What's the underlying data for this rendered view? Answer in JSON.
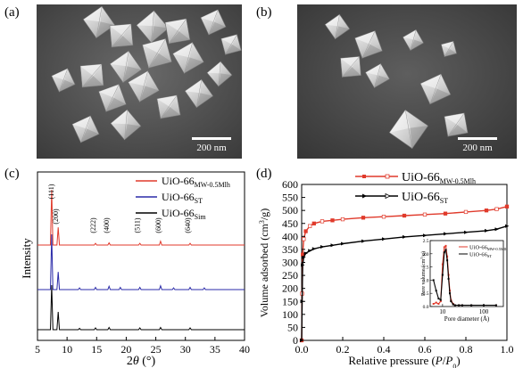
{
  "panels": {
    "a": {
      "label": "(a)",
      "scale_bar": "200 nm"
    },
    "b": {
      "label": "(b)",
      "scale_bar": "200 nm"
    },
    "c": {
      "label": "(c)"
    },
    "d": {
      "label": "(d)"
    }
  },
  "chart_data": [
    {
      "type": "line",
      "panel": "c",
      "xlabel": "2θ (°)",
      "xlabel_main": "2",
      "xlabel_theta": "θ",
      "xlabel_unit": " (°)",
      "ylabel": "Intensity (a.u.)",
      "xlim": [
        5,
        40
      ],
      "x_ticks": [
        "5",
        "10",
        "15",
        "20",
        "25",
        "30",
        "35",
        "40"
      ],
      "legend": [
        {
          "name": "UiO-66",
          "sub": "MW-0.5Mlh",
          "color": "#e03a2b"
        },
        {
          "name": "UiO-66",
          "sub": "ST",
          "color": "#2a2aa8"
        },
        {
          "name": "UiO-66",
          "sub": "Sim",
          "color": "#000000"
        }
      ],
      "peak_labels": [
        {
          "text": "(111)",
          "two_theta": 7.4
        },
        {
          "text": "(200)",
          "two_theta": 8.5
        },
        {
          "text": "(222)",
          "two_theta": 14.8
        },
        {
          "text": "(400)",
          "two_theta": 17.1
        },
        {
          "text": "(511)",
          "two_theta": 22.3
        },
        {
          "text": "(600)",
          "two_theta": 25.8
        },
        {
          "text": "(640)",
          "two_theta": 30.8
        }
      ],
      "series": [
        {
          "name": "UiO-66 MW-0.5Mlh",
          "color": "#e03a2b",
          "peaks": [
            [
              7.4,
              1.0
            ],
            [
              8.5,
              0.32
            ],
            [
              14.8,
              0.03
            ],
            [
              17.1,
              0.04
            ],
            [
              22.3,
              0.03
            ],
            [
              25.8,
              0.07
            ],
            [
              30.8,
              0.03
            ]
          ]
        },
        {
          "name": "UiO-66 ST",
          "color": "#2a2aa8",
          "peaks": [
            [
              7.4,
              1.0
            ],
            [
              8.5,
              0.32
            ],
            [
              12.1,
              0.03
            ],
            [
              14.8,
              0.04
            ],
            [
              17.1,
              0.06
            ],
            [
              19.0,
              0.04
            ],
            [
              22.3,
              0.04
            ],
            [
              25.8,
              0.07
            ],
            [
              28.0,
              0.03
            ],
            [
              30.8,
              0.04
            ],
            [
              33.2,
              0.03
            ]
          ]
        },
        {
          "name": "UiO-66 Sim",
          "color": "#000000",
          "peaks": [
            [
              7.4,
              1.0
            ],
            [
              8.5,
              0.4
            ],
            [
              12.1,
              0.03
            ],
            [
              14.8,
              0.04
            ],
            [
              17.1,
              0.05
            ],
            [
              22.3,
              0.04
            ],
            [
              25.8,
              0.05
            ],
            [
              30.8,
              0.04
            ]
          ]
        }
      ]
    },
    {
      "type": "line",
      "panel": "d",
      "xlabel": "Relative pressure (P/P0)",
      "xlabel_main": "Relative pressure (",
      "xlabel_p": "P",
      "xlabel_slash": "/",
      "xlabel_p0": "P",
      "xlabel_p0_sub": "0",
      "xlabel_close": ")",
      "ylabel": "Volume adsorbed (cm3/g)",
      "ylabel_main": "Volume adsorbed (cm",
      "ylabel_sup": "3",
      "ylabel_end": "/g)",
      "xlim": [
        0,
        1.0
      ],
      "ylim": [
        0,
        600
      ],
      "x_ticks": [
        "0.0",
        "0.2",
        "0.4",
        "0.6",
        "0.8",
        "1.0"
      ],
      "y_ticks": [
        "0",
        "50",
        "100",
        "150",
        "200",
        "250",
        "300",
        "350",
        "400",
        "450",
        "500",
        "550",
        "600"
      ],
      "legend": [
        {
          "name": "UiO-66",
          "sub": "MW-0.5Mlh",
          "color": "#e03a2b"
        },
        {
          "name": "UiO-66",
          "sub": "ST",
          "color": "#000000"
        }
      ],
      "series": [
        {
          "name": "UiO-66 MW-0.5Mlh",
          "color": "#e03a2b",
          "x": [
            0.0,
            0.002,
            0.005,
            0.01,
            0.02,
            0.04,
            0.06,
            0.1,
            0.15,
            0.2,
            0.3,
            0.4,
            0.5,
            0.6,
            0.7,
            0.8,
            0.9,
            0.95,
            1.0
          ],
          "y": [
            0,
            180,
            330,
            390,
            420,
            440,
            450,
            458,
            462,
            466,
            472,
            476,
            480,
            484,
            488,
            494,
            500,
            505,
            515
          ]
        },
        {
          "name": "UiO-66 ST",
          "color": "#000000",
          "x": [
            0.0,
            0.002,
            0.005,
            0.01,
            0.02,
            0.04,
            0.06,
            0.1,
            0.15,
            0.2,
            0.3,
            0.4,
            0.5,
            0.6,
            0.7,
            0.8,
            0.9,
            0.95,
            1.0
          ],
          "y": [
            0,
            150,
            290,
            320,
            335,
            345,
            352,
            360,
            366,
            372,
            382,
            390,
            398,
            404,
            410,
            416,
            422,
            428,
            440
          ]
        }
      ],
      "inset": {
        "xlabel": "Pore diameter (Å)",
        "ylabel": "Pore volume (cm3/g)",
        "ylabel_main": "Pore volume (cm",
        "ylabel_sup": "3",
        "ylabel_end": "/g)",
        "x_scale": "log",
        "xlim": [
          5,
          300
        ],
        "ylim": [
          0,
          2.5
        ],
        "x_ticks": [
          "10",
          "100"
        ],
        "y_ticks": [
          "0.0",
          "0.5",
          "1.0",
          "1.5",
          "2.0",
          "2.5"
        ],
        "legend": [
          {
            "name": "UiO-66",
            "sub": "MW-0.5Mlh",
            "color": "#e03a2b"
          },
          {
            "name": "UiO-66",
            "sub": "ST",
            "color": "#000000"
          }
        ],
        "series": [
          {
            "name": "UiO-66 MW-0.5Mlh",
            "color": "#e03a2b",
            "x": [
              6,
              7,
              8,
              9,
              10,
              11,
              12,
              13,
              14,
              15,
              16,
              18,
              20,
              25,
              30,
              50,
              100,
              200
            ],
            "y": [
              0.1,
              0.15,
              0.1,
              0.2,
              1.6,
              2.25,
              2.3,
              1.9,
              1.2,
              0.6,
              0.25,
              0.1,
              0.05,
              0.05,
              0.05,
              0.05,
              0.05,
              0.05
            ]
          },
          {
            "name": "UiO-66 ST",
            "color": "#000000",
            "x": [
              6,
              7,
              8,
              9,
              10,
              11,
              12,
              13,
              14,
              15,
              16,
              18,
              20,
              25,
              30,
              50,
              100,
              200
            ],
            "y": [
              1.0,
              0.6,
              0.3,
              0.25,
              1.2,
              2.05,
              2.15,
              1.75,
              1.05,
              0.5,
              0.2,
              0.08,
              0.05,
              0.05,
              0.05,
              0.05,
              0.05,
              0.05
            ]
          }
        ]
      }
    }
  ]
}
